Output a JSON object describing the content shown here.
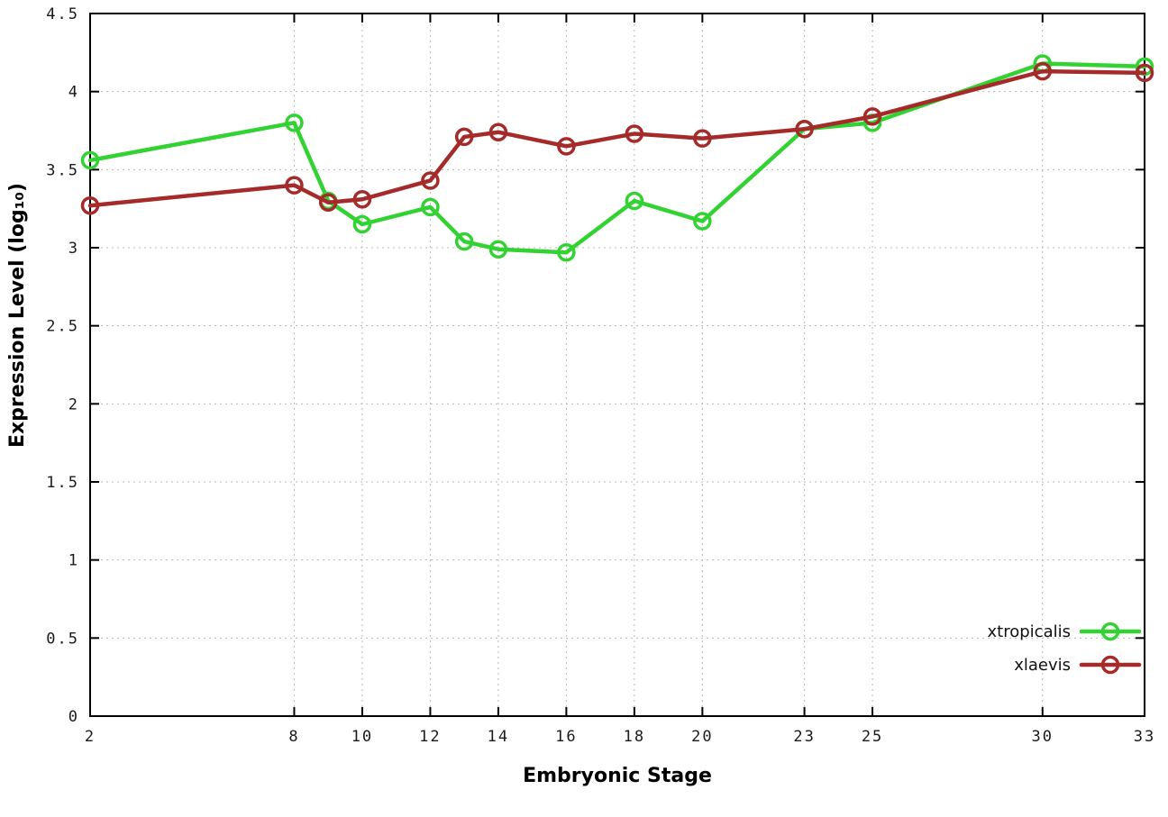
{
  "chart_data": {
    "type": "line",
    "title": "",
    "xlabel": "Embryonic Stage",
    "ylabel": "Expression Level (log₁₀)",
    "xlim": [
      2,
      33
    ],
    "ylim": [
      0,
      4.5
    ],
    "x_ticks": [
      2,
      8,
      10,
      12,
      14,
      16,
      18,
      20,
      23,
      25,
      30,
      33
    ],
    "y_ticks": [
      0,
      0.5,
      1,
      1.5,
      2,
      2.5,
      3,
      3.5,
      4,
      4.5
    ],
    "grid": true,
    "legend_position": "bottom-right",
    "x": [
      2,
      8,
      9,
      10,
      12,
      13,
      14,
      16,
      18,
      20,
      23,
      25,
      30,
      33
    ],
    "series": [
      {
        "name": "xtropicalis",
        "color": "#32d232",
        "values": [
          3.56,
          3.8,
          3.3,
          3.15,
          3.26,
          3.04,
          2.99,
          2.97,
          3.3,
          3.17,
          3.76,
          3.8,
          4.18,
          4.16
        ]
      },
      {
        "name": "xlaevis",
        "color": "#a52a2a",
        "values": [
          3.27,
          3.4,
          3.29,
          3.31,
          3.43,
          3.71,
          3.74,
          3.65,
          3.73,
          3.7,
          3.76,
          3.84,
          4.13,
          4.12
        ]
      }
    ]
  },
  "colors": {
    "background": "#ffffff",
    "grid": "#b8b8b8",
    "axis": "#000000"
  }
}
